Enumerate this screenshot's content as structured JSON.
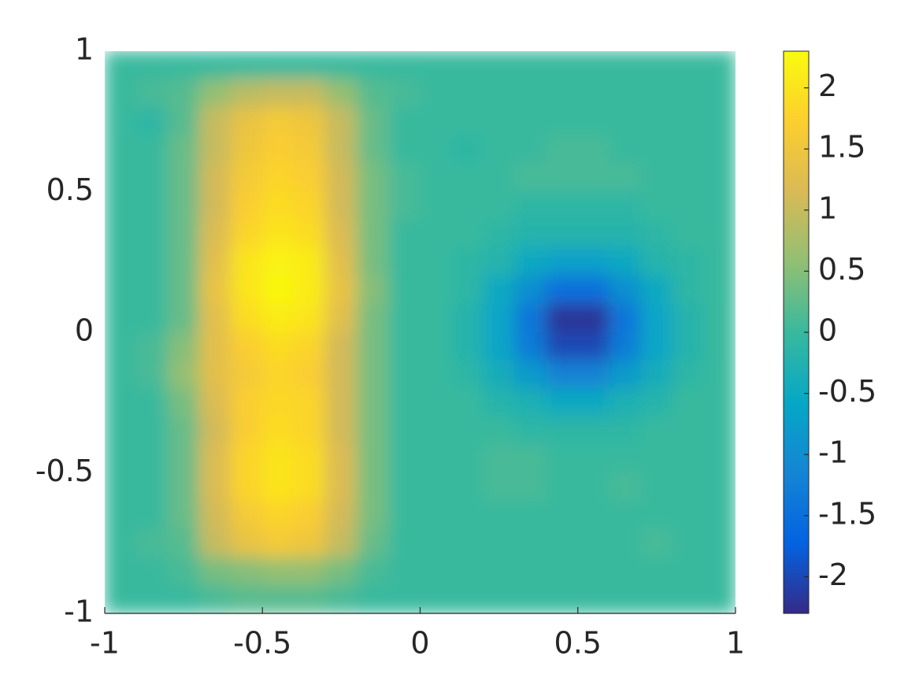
{
  "chart_data": {
    "type": "heatmap",
    "x": [
      -0.95,
      -0.85,
      -0.75,
      -0.65,
      -0.55,
      -0.45,
      -0.35,
      -0.25,
      -0.15,
      -0.05,
      0.05,
      0.15,
      0.25,
      0.35,
      0.45,
      0.55,
      0.65,
      0.75,
      0.85,
      0.95
    ],
    "y": [
      0.95,
      0.85,
      0.75,
      0.65,
      0.55,
      0.45,
      0.35,
      0.25,
      0.15,
      0.05,
      -0.05,
      -0.15,
      -0.25,
      -0.35,
      -0.45,
      -0.55,
      -0.65,
      -0.75,
      -0.85,
      -0.95
    ],
    "z": [
      [
        0,
        0,
        0,
        0,
        0,
        0,
        0,
        0,
        0,
        0,
        0,
        0,
        0,
        0,
        0,
        0,
        0,
        0,
        0,
        0
      ],
      [
        0,
        0.1,
        0.2,
        0.6,
        0.9,
        1,
        1,
        0.6,
        0.2,
        0.1,
        0,
        0,
        0,
        0,
        0,
        0,
        0,
        0,
        0,
        0
      ],
      [
        0,
        -0.1,
        0.2,
        1,
        1.4,
        1.6,
        1.5,
        1,
        0.3,
        0,
        0,
        0,
        0,
        0,
        0,
        0,
        0,
        0,
        0,
        0
      ],
      [
        0,
        0,
        0.3,
        1,
        1.5,
        1.7,
        1.6,
        1,
        0.3,
        0,
        0,
        -0.1,
        0,
        0,
        0.1,
        0.1,
        0,
        0,
        0,
        0
      ],
      [
        0,
        0,
        0.3,
        1.1,
        1.6,
        1.8,
        1.7,
        1.1,
        0.4,
        0.1,
        0,
        0,
        0,
        0.1,
        0.1,
        0.1,
        0.1,
        0,
        0,
        0
      ],
      [
        0,
        0,
        0.3,
        1.1,
        1.7,
        1.9,
        1.8,
        1.1,
        0.4,
        0.1,
        0,
        0,
        0,
        -0.1,
        -0.1,
        -0.1,
        -0.1,
        0,
        0,
        0
      ],
      [
        0,
        0,
        0.3,
        1.2,
        1.8,
        2,
        1.9,
        1.2,
        0.4,
        0,
        0,
        0,
        -0.1,
        -0.2,
        -0.2,
        -0.2,
        -0.2,
        -0.1,
        0,
        0
      ],
      [
        0,
        0,
        0.3,
        1.3,
        2,
        2.2,
        2.1,
        1.3,
        0.4,
        0,
        0,
        -0.1,
        -0.2,
        -0.5,
        -0.7,
        -0.7,
        -0.5,
        -0.2,
        -0.1,
        0
      ],
      [
        0,
        0,
        0.3,
        1.4,
        2,
        2.25,
        2.1,
        1.4,
        0.5,
        0,
        0,
        -0.1,
        -0.5,
        -1,
        -1.5,
        -1.5,
        -1,
        -0.5,
        -0.1,
        0
      ],
      [
        0,
        0,
        0.3,
        1.3,
        1.9,
        2.1,
        2,
        1.3,
        0.4,
        0,
        0,
        -0.2,
        -0.6,
        -1.4,
        -2.2,
        -2.2,
        -1.4,
        -0.6,
        -0.2,
        0
      ],
      [
        0,
        0.1,
        0.5,
        1.3,
        1.7,
        1.9,
        1.8,
        1.1,
        0.4,
        0,
        0,
        -0.2,
        -0.6,
        -1.3,
        -2,
        -2,
        -1.3,
        -0.6,
        -0.2,
        0
      ],
      [
        0,
        0.1,
        0.6,
        1.3,
        1.6,
        1.8,
        1.7,
        1.1,
        0.4,
        0,
        0,
        -0.1,
        -0.4,
        -0.8,
        -1.2,
        -1.2,
        -0.8,
        -0.4,
        -0.1,
        0
      ],
      [
        0,
        0,
        0.4,
        1.2,
        1.7,
        1.85,
        1.8,
        1.1,
        0.4,
        0,
        0,
        0,
        -0.2,
        -0.3,
        -0.5,
        -0.5,
        -0.3,
        -0.2,
        0,
        0
      ],
      [
        0,
        0,
        0.3,
        1.1,
        1.7,
        1.9,
        1.8,
        1.1,
        0.4,
        0,
        0,
        0,
        0,
        -0.1,
        -0.1,
        -0.1,
        -0.1,
        0,
        0,
        0
      ],
      [
        0,
        0,
        0.3,
        1.2,
        1.8,
        2,
        1.9,
        1.2,
        0.4,
        0,
        0,
        0,
        0.1,
        0.1,
        0,
        0,
        0,
        0,
        0,
        0
      ],
      [
        0,
        0,
        0.3,
        1.2,
        1.8,
        2,
        1.9,
        1.2,
        0.4,
        0,
        0,
        0,
        0.1,
        0.1,
        0,
        0,
        0.1,
        0,
        0,
        0
      ],
      [
        0,
        0,
        0.3,
        1.1,
        1.6,
        1.8,
        1.7,
        1.1,
        0.4,
        0,
        0,
        0,
        0,
        0,
        0,
        0,
        0,
        0,
        0,
        0
      ],
      [
        0,
        0.1,
        0.2,
        1,
        1.4,
        1.6,
        1.5,
        1,
        0.3,
        0,
        0,
        0,
        0,
        0,
        0,
        0,
        0,
        0.1,
        0,
        0
      ],
      [
        0,
        0,
        0.1,
        0.4,
        0.5,
        0.6,
        0.6,
        0.4,
        0.1,
        0,
        0,
        0,
        0,
        0,
        0,
        0,
        0,
        0,
        0,
        0
      ],
      [
        0,
        0,
        0,
        0.1,
        0.2,
        0.2,
        0.2,
        0.1,
        0,
        0,
        0,
        0,
        0,
        0,
        0,
        0,
        0,
        0,
        0,
        0
      ]
    ],
    "xlim": [
      -1,
      1
    ],
    "ylim": [
      -1,
      1
    ],
    "xticks": [
      -1,
      -0.5,
      0,
      0.5,
      1
    ],
    "yticks": [
      -1,
      -0.5,
      0,
      0.5,
      1
    ],
    "clim": [
      -2.3,
      2.3
    ],
    "cticks": [
      -2,
      -1.5,
      -1,
      -0.5,
      0,
      0.5,
      1,
      1.5,
      2
    ],
    "colormap": [
      "#352a87",
      "#0363e1",
      "#1485d4",
      "#06a7c6",
      "#38b99e",
      "#92bf73",
      "#d9ba56",
      "#fcce2e",
      "#f9fb0e"
    ]
  }
}
